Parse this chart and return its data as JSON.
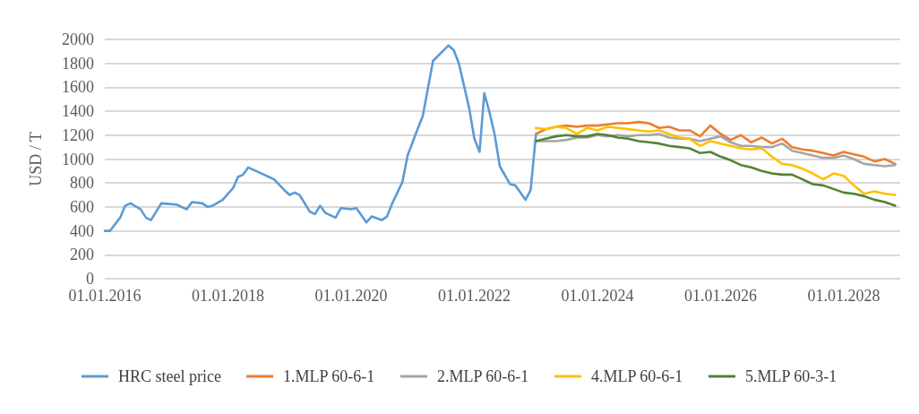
{
  "chart_data": {
    "type": "line",
    "ylabel": "USD / T",
    "xlim": [
      "2016-01-01",
      "2028-12-01"
    ],
    "xticks": [
      {
        "value": "2016-01-01",
        "label": "01.01.2016"
      },
      {
        "value": "2018-01-01",
        "label": "01.01.2018"
      },
      {
        "value": "2020-01-01",
        "label": "01.01.2020"
      },
      {
        "value": "2022-01-01",
        "label": "01.01.2022"
      },
      {
        "value": "2024-01-01",
        "label": "01.01.2024"
      },
      {
        "value": "2026-01-01",
        "label": "01.01.2026"
      },
      {
        "value": "2028-01-01",
        "label": "01.01.2028"
      }
    ],
    "ylim": [
      0,
      2000
    ],
    "yticks": [
      0,
      200,
      400,
      600,
      800,
      1000,
      1200,
      1400,
      1600,
      1800,
      2000
    ],
    "grid": "y",
    "legend": "bottom",
    "marker": "none",
    "line_style": "solid",
    "series": [
      {
        "name": "HRC steel price",
        "color": "#5b9bd5",
        "x": [
          "2016-01",
          "2016-02",
          "2016-04",
          "2016-05",
          "2016-06",
          "2016-08",
          "2016-09",
          "2016-10",
          "2016-12",
          "2017-03",
          "2017-05",
          "2017-06",
          "2017-08",
          "2017-09",
          "2017-10",
          "2017-12",
          "2018-02",
          "2018-03",
          "2018-04",
          "2018-05",
          "2018-07",
          "2018-09",
          "2018-10",
          "2018-12",
          "2019-01",
          "2019-02",
          "2019-03",
          "2019-04",
          "2019-05",
          "2019-06",
          "2019-07",
          "2019-08",
          "2019-10",
          "2019-11",
          "2020-01",
          "2020-02",
          "2020-04",
          "2020-05",
          "2020-07",
          "2020-08",
          "2020-09",
          "2020-11",
          "2020-12",
          "2021-02",
          "2021-03",
          "2021-05",
          "2021-08",
          "2021-09",
          "2021-10",
          "2021-12",
          "2022-01",
          "2022-02",
          "2022-03",
          "2022-04",
          "2022-05",
          "2022-06",
          "2022-08",
          "2022-09",
          "2022-11",
          "2022-12",
          "2023-01"
        ],
        "values": [
          400,
          400,
          510,
          610,
          630,
          580,
          510,
          490,
          630,
          620,
          580,
          640,
          630,
          600,
          610,
          660,
          760,
          850,
          870,
          930,
          890,
          850,
          830,
          740,
          700,
          720,
          700,
          630,
          560,
          540,
          610,
          550,
          510,
          590,
          580,
          590,
          470,
          520,
          490,
          520,
          630,
          810,
          1030,
          1260,
          1360,
          1820,
          1950,
          1910,
          1800,
          1430,
          1170,
          1060,
          1550,
          1390,
          1210,
          940,
          790,
          780,
          660,
          740,
          1200
        ]
      },
      {
        "name": "1.MLP 60-6-1",
        "color": "#ed7d31",
        "x": [
          "2023-01",
          "2023-03",
          "2023-05",
          "2023-07",
          "2023-09",
          "2023-11",
          "2024-01",
          "2024-03",
          "2024-05",
          "2024-07",
          "2024-09",
          "2024-11",
          "2025-01",
          "2025-03",
          "2025-05",
          "2025-07",
          "2025-09",
          "2025-11",
          "2026-01",
          "2026-03",
          "2026-05",
          "2026-07",
          "2026-09",
          "2026-11",
          "2027-01",
          "2027-03",
          "2027-05",
          "2027-07",
          "2027-09",
          "2027-11",
          "2028-01",
          "2028-03",
          "2028-05",
          "2028-07",
          "2028-09",
          "2028-11"
        ],
        "values": [
          1210,
          1250,
          1270,
          1280,
          1270,
          1280,
          1280,
          1290,
          1300,
          1300,
          1310,
          1300,
          1260,
          1270,
          1240,
          1240,
          1190,
          1280,
          1210,
          1160,
          1200,
          1140,
          1180,
          1130,
          1170,
          1100,
          1080,
          1070,
          1050,
          1030,
          1060,
          1040,
          1020,
          980,
          1000,
          960
        ]
      },
      {
        "name": "2.MLP 60-6-1",
        "color": "#a5a5a5",
        "x": [
          "2023-01",
          "2023-03",
          "2023-05",
          "2023-07",
          "2023-09",
          "2023-11",
          "2024-01",
          "2024-03",
          "2024-05",
          "2024-07",
          "2024-09",
          "2024-11",
          "2025-01",
          "2025-03",
          "2025-05",
          "2025-07",
          "2025-09",
          "2025-11",
          "2026-01",
          "2026-03",
          "2026-05",
          "2026-07",
          "2026-09",
          "2026-11",
          "2027-01",
          "2027-03",
          "2027-05",
          "2027-07",
          "2027-09",
          "2027-11",
          "2028-01",
          "2028-03",
          "2028-05",
          "2028-07",
          "2028-09",
          "2028-11"
        ],
        "values": [
          1150,
          1150,
          1150,
          1160,
          1180,
          1180,
          1200,
          1190,
          1200,
          1190,
          1200,
          1200,
          1210,
          1180,
          1170,
          1170,
          1150,
          1170,
          1190,
          1140,
          1110,
          1110,
          1100,
          1100,
          1130,
          1070,
          1050,
          1030,
          1010,
          1010,
          1030,
          1000,
          960,
          950,
          940,
          950
        ]
      },
      {
        "name": "4.MLP 60-6-1",
        "color": "#ffc000",
        "x": [
          "2023-01",
          "2023-03",
          "2023-05",
          "2023-07",
          "2023-09",
          "2023-11",
          "2024-01",
          "2024-03",
          "2024-05",
          "2024-07",
          "2024-09",
          "2024-11",
          "2025-01",
          "2025-03",
          "2025-05",
          "2025-07",
          "2025-09",
          "2025-11",
          "2026-01",
          "2026-03",
          "2026-05",
          "2026-07",
          "2026-09",
          "2026-11",
          "2027-01",
          "2027-03",
          "2027-05",
          "2027-07",
          "2027-09",
          "2027-11",
          "2028-01",
          "2028-03",
          "2028-05",
          "2028-07",
          "2028-09",
          "2028-11"
        ],
        "values": [
          1260,
          1250,
          1270,
          1260,
          1210,
          1260,
          1240,
          1270,
          1260,
          1250,
          1240,
          1230,
          1240,
          1210,
          1180,
          1170,
          1110,
          1150,
          1130,
          1110,
          1090,
          1080,
          1090,
          1020,
          960,
          950,
          920,
          880,
          830,
          880,
          860,
          780,
          710,
          730,
          710,
          700
        ]
      },
      {
        "name": "5.MLP 60-3-1",
        "color": "#548235",
        "x": [
          "2023-01",
          "2023-03",
          "2023-05",
          "2023-07",
          "2023-09",
          "2023-11",
          "2024-01",
          "2024-03",
          "2024-05",
          "2024-07",
          "2024-09",
          "2024-11",
          "2025-01",
          "2025-03",
          "2025-05",
          "2025-07",
          "2025-09",
          "2025-11",
          "2026-01",
          "2026-03",
          "2026-05",
          "2026-07",
          "2026-09",
          "2026-11",
          "2027-01",
          "2027-03",
          "2027-05",
          "2027-07",
          "2027-09",
          "2027-11",
          "2028-01",
          "2028-03",
          "2028-05",
          "2028-07",
          "2028-09",
          "2028-11"
        ],
        "values": [
          1150,
          1170,
          1190,
          1200,
          1190,
          1190,
          1210,
          1200,
          1180,
          1170,
          1150,
          1140,
          1130,
          1110,
          1100,
          1090,
          1050,
          1060,
          1020,
          990,
          950,
          930,
          900,
          880,
          870,
          870,
          830,
          790,
          780,
          750,
          720,
          710,
          690,
          660,
          640,
          610
        ]
      }
    ]
  }
}
